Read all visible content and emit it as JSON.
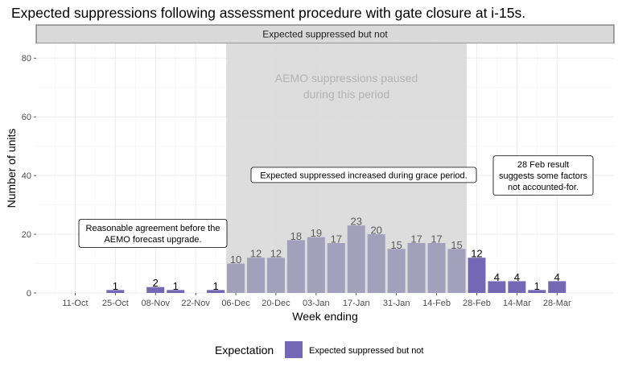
{
  "chart_data": {
    "type": "bar",
    "title": "Expected suppressions following assessment procedure with gate closure at i-15s.",
    "facet_label": "Expected suppressed but not",
    "xlabel": "Week ending",
    "ylabel": "Number of units",
    "ylim": [
      0,
      85
    ],
    "yticks": [
      0,
      20,
      40,
      60,
      80
    ],
    "grid": true,
    "categories": [
      "04-Oct",
      "11-Oct",
      "18-Oct",
      "25-Oct",
      "01-Nov",
      "08-Nov",
      "15-Nov",
      "22-Nov",
      "29-Nov",
      "06-Dec",
      "13-Dec",
      "20-Dec",
      "27-Dec",
      "03-Jan",
      "10-Jan",
      "17-Jan",
      "24-Jan",
      "31-Jan",
      "07-Feb",
      "14-Feb",
      "21-Feb",
      "28-Feb",
      "07-Mar",
      "14-Mar",
      "21-Mar",
      "28-Mar"
    ],
    "xtick_labels": [
      "11-Oct",
      "25-Oct",
      "08-Nov",
      "22-Nov",
      "06-Dec",
      "20-Dec",
      "03-Jan",
      "17-Jan",
      "31-Jan",
      "14-Feb",
      "28-Feb",
      "14-Mar",
      "28-Mar"
    ],
    "values": [
      0,
      0,
      0,
      1,
      0,
      2,
      1,
      0,
      1,
      10,
      12,
      12,
      18,
      19,
      17,
      23,
      20,
      15,
      17,
      17,
      15,
      12,
      4,
      4,
      1,
      4
    ],
    "value_labels": [
      "",
      "",
      "",
      "1",
      "",
      "2",
      "1",
      "",
      "1",
      "10",
      "12",
      "12",
      "18",
      "19",
      "17",
      "23",
      "20",
      "15",
      "17",
      "17",
      "15",
      "12",
      "4",
      "4",
      "1",
      "4"
    ],
    "shaded_period": {
      "start": "06-Dec",
      "end": "21-Feb",
      "label_line1": "AEMO suppressions paused",
      "label_line2": "during this period"
    },
    "series": [
      {
        "name": "Expected suppressed but not",
        "color": "#7468b4"
      }
    ],
    "annotations": [
      {
        "lines": [
          "Reasonable agreement before the",
          "AEMO forecast upgrade."
        ]
      },
      {
        "lines": [
          "Expected suppressed increased during grace period."
        ]
      },
      {
        "lines": [
          "28 Feb result",
          "suggests some factors",
          "not accounted-for."
        ]
      }
    ],
    "legend": {
      "title": "Expectation",
      "label": "Expected suppressed but not",
      "position": "bottom"
    }
  },
  "colors": {
    "bar": "#7468b4",
    "bar_faded": "#a3a0bc",
    "panel": "#ffffff",
    "grid_major": "#ebebeb",
    "grid_minor": "#f5f5f5",
    "shade": "#d9d9d9",
    "strip": "#d9d9d9"
  }
}
